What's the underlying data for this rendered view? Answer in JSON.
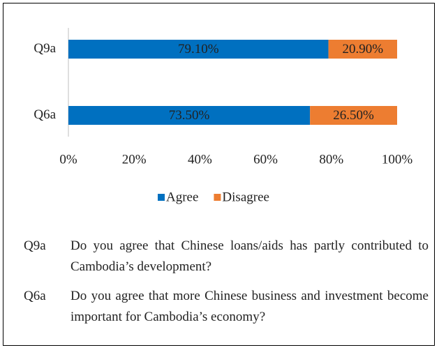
{
  "chart_data": {
    "type": "stacked-barh",
    "categories": [
      "Q9a",
      "Q6a"
    ],
    "series": [
      {
        "name": "Agree",
        "color": "#0070c0",
        "values": [
          79.1,
          73.5
        ],
        "value_labels": [
          "79.10%",
          "73.50%"
        ]
      },
      {
        "name": "Disagree",
        "color": "#ed7d31",
        "values": [
          20.9,
          26.5
        ],
        "value_labels": [
          "20.90%",
          "26.50%"
        ]
      }
    ],
    "xlim": [
      0,
      100
    ],
    "xticks": [
      {
        "value": 0,
        "label": "0%"
      },
      {
        "value": 20,
        "label": "20%"
      },
      {
        "value": 40,
        "label": "40%"
      },
      {
        "value": 60,
        "label": "60%"
      },
      {
        "value": 80,
        "label": "80%"
      },
      {
        "value": 100,
        "label": "100%"
      }
    ],
    "legend": "bottom"
  },
  "notes": [
    {
      "code": "Q9a",
      "text": "Do you agree that Chinese loans/aids has partly contributed to Cambodia’s development?"
    },
    {
      "code": "Q6a",
      "text": "Do you agree that more Chinese business and investment become important for Cambodia’s economy?"
    }
  ]
}
